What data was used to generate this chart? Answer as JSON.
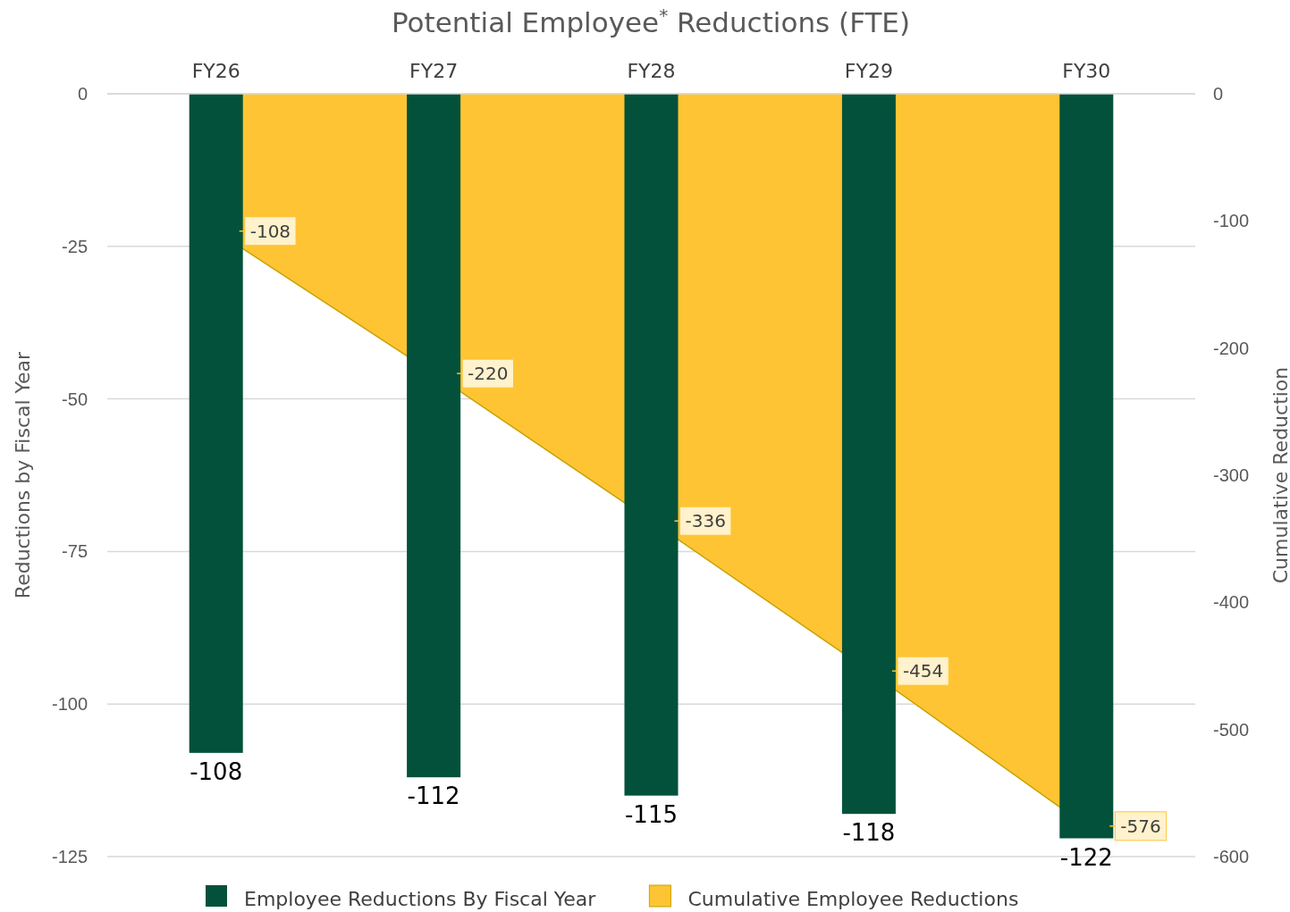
{
  "chart_data": {
    "type": "bar",
    "title": "Potential Employee$^{*}$ Reductions (FTE)",
    "ylabel": "Reductions by Fiscal Year",
    "y2label": "Cumulative Reduction",
    "categories": [
      "FY26",
      "FY27",
      "FY28",
      "FY29",
      "FY30"
    ],
    "series": [
      {
        "name": "Employee Reductions By Fiscal Year",
        "color": "#03513a",
        "values": [
          -108,
          -112,
          -115,
          -118,
          -122
        ]
      },
      {
        "name": "Cumulative Employee Reductions",
        "type": "area",
        "axis": "y2",
        "color": "#fec433",
        "values": [
          -108,
          -220,
          -336,
          -454,
          -576
        ]
      }
    ],
    "ylim": [
      -125,
      0
    ],
    "yticks": [
      0,
      -25,
      -50,
      -75,
      -100,
      -125
    ],
    "y2lim": [
      -600,
      0
    ],
    "y2ticks": [
      0,
      -100,
      -200,
      -300,
      -400,
      -500,
      -600
    ],
    "grid": "y",
    "legend": "bottom",
    "data_labels": true
  }
}
